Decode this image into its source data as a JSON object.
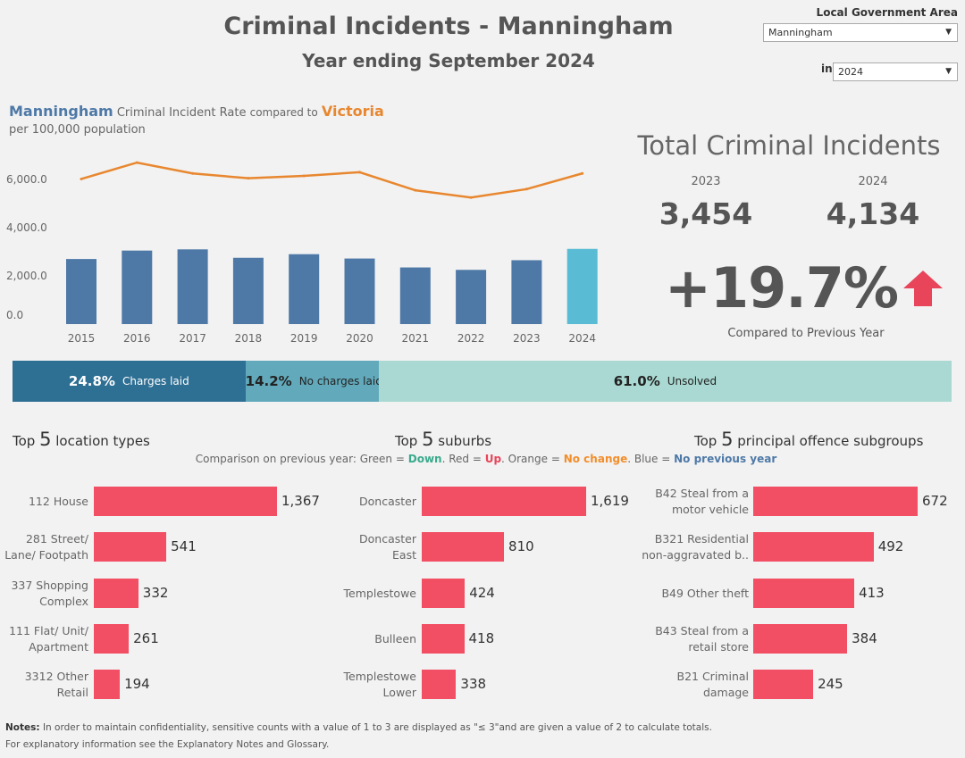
{
  "header": {
    "title": "Criminal Incidents - Manningham",
    "subtitle": "Year ending September 2024",
    "lga_label": "Local Government Area",
    "lga_value": "Manningham",
    "in_label": "in",
    "year_value": "2024"
  },
  "rate_chart": {
    "title_lga": "Manningham",
    "title_mid": "Criminal Incident Rate",
    "title_compared": "compared to",
    "title_vic": "Victoria",
    "subtitle": "per 100,000 population"
  },
  "chart_data": [
    {
      "type": "bar",
      "categories": [
        "2015",
        "2016",
        "2017",
        "2018",
        "2019",
        "2020",
        "2021",
        "2022",
        "2023",
        "2024"
      ],
      "series": [
        {
          "name": "Manningham",
          "type": "bar",
          "values": [
            2700,
            3050,
            3100,
            2750,
            2900,
            2720,
            2350,
            2250,
            2650,
            3120
          ],
          "colors": [
            "#4e79a7",
            "#4e79a7",
            "#4e79a7",
            "#4e79a7",
            "#4e79a7",
            "#4e79a7",
            "#4e79a7",
            "#4e79a7",
            "#4e79a7",
            "#59bcd4"
          ]
        },
        {
          "name": "Victoria",
          "type": "line",
          "values": [
            6020,
            6700,
            6250,
            6050,
            6150,
            6300,
            5550,
            5250,
            5600,
            6250
          ],
          "color": "#e8872f"
        }
      ],
      "yticks": [
        "0.0",
        "2,000.0",
        "4,000.0",
        "6,000.0"
      ],
      "ylim": [
        0,
        7000
      ]
    },
    {
      "type": "bar",
      "orientation": "horizontal",
      "stacked": true,
      "categories": [
        "Charges laid",
        "No charges laid",
        "Unsolved"
      ],
      "values": [
        24.8,
        14.2,
        61.0
      ],
      "value_labels": [
        "24.8%",
        "14.2%",
        "61.0%"
      ],
      "colors": [
        "#2e6f94",
        "#62aabb",
        "#a9d9d2"
      ]
    },
    {
      "type": "bar",
      "orientation": "horizontal",
      "title_prefix": "Top",
      "title_num": "5",
      "title_suffix": "location types",
      "categories": [
        "112 House",
        "281 Street/ Lane/ Footpath",
        "337 Shopping Complex",
        "111 Flat/ Unit/ Apartment",
        "3312 Other Retail"
      ],
      "label_lines": [
        [
          "112 House"
        ],
        [
          "281 Street/",
          "Lane/ Footpath"
        ],
        [
          "337 Shopping",
          "Complex"
        ],
        [
          "111 Flat/ Unit/",
          "Apartment"
        ],
        [
          "3312 Other",
          "Retail"
        ]
      ],
      "values": [
        1367,
        541,
        332,
        261,
        194
      ],
      "value_labels": [
        "1,367",
        "541",
        "332",
        "261",
        "194"
      ],
      "color": "#f24f64"
    },
    {
      "type": "bar",
      "orientation": "horizontal",
      "title_prefix": "Top",
      "title_num": "5",
      "title_suffix": "suburbs",
      "categories": [
        "Doncaster",
        "Doncaster East",
        "Templestowe",
        "Bulleen",
        "Templestowe Lower"
      ],
      "label_lines": [
        [
          "Doncaster"
        ],
        [
          "Doncaster",
          "East"
        ],
        [
          "Templestowe"
        ],
        [
          "Bulleen"
        ],
        [
          "Templestowe",
          "Lower"
        ]
      ],
      "values": [
        1619,
        810,
        424,
        418,
        338
      ],
      "value_labels": [
        "1,619",
        "810",
        "424",
        "418",
        "338"
      ],
      "color": "#f24f64"
    },
    {
      "type": "bar",
      "orientation": "horizontal",
      "title_prefix": "Top",
      "title_num": "5",
      "title_suffix": "principal offence subgroups",
      "categories": [
        "B42 Steal from a motor vehicle",
        "B321 Residential non-aggravated b..",
        "B49 Other theft",
        "B43 Steal from a retail store",
        "B21 Criminal damage"
      ],
      "label_lines": [
        [
          "B42 Steal from a",
          "motor vehicle"
        ],
        [
          "B321 Residential",
          "non-aggravated b.."
        ],
        [
          "B49 Other theft"
        ],
        [
          "B43 Steal from a",
          "retail store"
        ],
        [
          "B21 Criminal",
          "damage"
        ]
      ],
      "values": [
        672,
        492,
        413,
        384,
        245
      ],
      "value_labels": [
        "672",
        "492",
        "413",
        "384",
        "245"
      ],
      "color": "#f24f64"
    }
  ],
  "total": {
    "title": "Total Criminal Incidents",
    "year_prev": "2023",
    "value_prev": "3,454",
    "year_curr": "2024",
    "value_curr": "4,134",
    "change": "+19.7%",
    "caption": "Compared to Previous Year",
    "arrow_color": "#e8445a",
    "arrow_icon": "arrow-up-icon"
  },
  "comparison": {
    "lead": "Comparison on previous year: Green =",
    "down": "Down",
    "red": ". Red =",
    "up": "Up",
    "orange": ". Orange =",
    "nochange": "No change",
    "blue": ". Blue =",
    "noprev": "No previous year"
  },
  "notes": {
    "label": "Notes:",
    "line1": "In order to maintain confidentiality, sensitive counts with a value of 1 to 3  are displayed as \"≤ 3\"and are given a value of 2 to calculate totals.",
    "line2": "For explanatory information see the Explanatory Notes and Glossary."
  }
}
